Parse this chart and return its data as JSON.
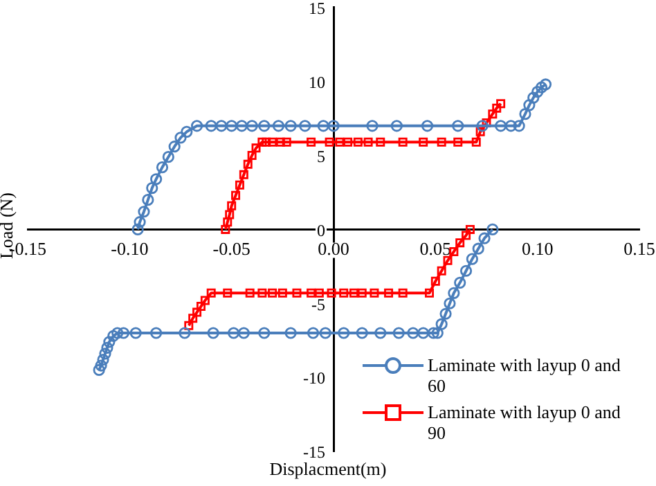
{
  "chart_data": {
    "type": "line",
    "xlabel": "Displacment(m)",
    "ylabel": "Load (N)",
    "xlim": [
      -0.15,
      0.15
    ],
    "ylim": [
      -15,
      15
    ],
    "xticks": [
      {
        "value": -0.15,
        "label": "-0.15"
      },
      {
        "value": -0.1,
        "label": "-0.10"
      },
      {
        "value": -0.05,
        "label": "-0.05"
      },
      {
        "value": 0,
        "label": "0.00"
      },
      {
        "value": 0.05,
        "label": "0.05"
      },
      {
        "value": 0.1,
        "label": "0.10"
      },
      {
        "value": 0.15,
        "label": "0.15"
      }
    ],
    "yticks": [
      -15,
      -10,
      -5,
      0,
      5,
      10,
      15
    ],
    "grid": false,
    "legend": "bottom right",
    "line_style": "solid",
    "series": [
      {
        "name": "Laminate with layup 0 and 60",
        "color": "#4a7ebb",
        "marker": "circle",
        "x": [
          -0.115,
          -0.114,
          -0.113,
          -0.112,
          -0.111,
          -0.11,
          -0.108,
          -0.106,
          -0.103,
          -0.097,
          -0.087,
          -0.073,
          -0.059,
          -0.049,
          -0.044,
          -0.034,
          -0.021,
          -0.01,
          -0.004,
          0.005,
          0.014,
          0.023,
          0.032,
          0.039,
          0.044,
          0.049,
          0.051,
          0.053,
          0.055,
          0.057,
          0.059,
          0.062,
          0.065,
          0.068,
          0.071,
          0.074,
          0.078,
          0.0,
          -0.096,
          -0.095,
          -0.093,
          -0.091,
          -0.089,
          -0.087,
          -0.084,
          -0.081,
          -0.078,
          -0.075,
          -0.072,
          -0.067,
          -0.06,
          -0.055,
          -0.05,
          -0.045,
          -0.04,
          -0.034,
          -0.027,
          -0.021,
          -0.014,
          -0.005,
          0,
          0.019,
          0.031,
          0.046,
          0.061,
          0.073,
          0.082,
          0.087,
          0.091,
          0.094,
          0.096,
          0.098,
          0.1,
          0.102,
          0.104
        ],
        "values": [
          -9.5,
          -9.2,
          -8.8,
          -8.4,
          -8.0,
          -7.6,
          -7.2,
          -7.0,
          -7.0,
          -7.0,
          -7.0,
          -7.0,
          -7.0,
          -7.0,
          -7.0,
          -7.0,
          -7.0,
          -7.0,
          -7.0,
          -7.0,
          -7.0,
          -7.0,
          -7.0,
          -7.0,
          -7.0,
          -7.0,
          -7.0,
          -6.4,
          -5.7,
          -5.0,
          -4.3,
          -3.6,
          -2.8,
          -2.0,
          -1.3,
          -0.6,
          0,
          null,
          0,
          0.5,
          1.2,
          2.0,
          2.8,
          3.4,
          4.2,
          4.9,
          5.6,
          6.2,
          6.6,
          7.0,
          7.0,
          7.0,
          7.0,
          7.0,
          7.0,
          7.0,
          7.0,
          7.0,
          7.0,
          7.0,
          7.0,
          7.0,
          7.0,
          7.0,
          7.0,
          7.0,
          7.0,
          7.0,
          7.0,
          7.8,
          8.4,
          8.9,
          9.3,
          9.6,
          9.8
        ]
      },
      {
        "name": "Laminate with layup 0 and 90",
        "color": "#ff0000",
        "marker": "square",
        "x": [
          -0.071,
          -0.069,
          -0.067,
          -0.065,
          -0.063,
          -0.06,
          -0.052,
          -0.041,
          -0.035,
          -0.03,
          -0.025,
          -0.018,
          -0.011,
          -0.007,
          -0.001,
          0.005,
          0.01,
          0.014,
          0.02,
          0.027,
          0.034,
          0.047,
          0.05,
          0.053,
          0.056,
          0.059,
          0.062,
          0.065,
          0.067,
          0.0,
          -0.053,
          -0.052,
          -0.051,
          -0.05,
          -0.048,
          -0.046,
          -0.044,
          -0.042,
          -0.04,
          -0.038,
          -0.035,
          -0.033,
          -0.03,
          -0.026,
          -0.023,
          -0.011,
          -0.002,
          0.003,
          0.007,
          0.012,
          0.017,
          0.023,
          0.034,
          0.044,
          0.053,
          0.061,
          0.07,
          0.072,
          0.075,
          0.078,
          0.08,
          0.082
        ],
        "values": [
          -6.5,
          -6.0,
          -5.6,
          -5.2,
          -4.8,
          -4.3,
          -4.3,
          -4.3,
          -4.3,
          -4.3,
          -4.3,
          -4.3,
          -4.3,
          -4.3,
          -4.3,
          -4.3,
          -4.3,
          -4.3,
          -4.3,
          -4.3,
          -4.3,
          -4.3,
          -3.5,
          -2.8,
          -2.1,
          -1.5,
          -0.9,
          -0.4,
          0,
          null,
          0,
          0.5,
          1.0,
          1.6,
          2.3,
          3.0,
          3.7,
          4.4,
          5.0,
          5.5,
          5.9,
          5.9,
          5.9,
          5.9,
          5.9,
          5.9,
          5.9,
          5.9,
          5.9,
          5.9,
          5.9,
          5.9,
          5.9,
          5.9,
          5.9,
          5.9,
          5.9,
          6.6,
          7.2,
          7.8,
          8.2,
          8.5
        ]
      }
    ]
  }
}
